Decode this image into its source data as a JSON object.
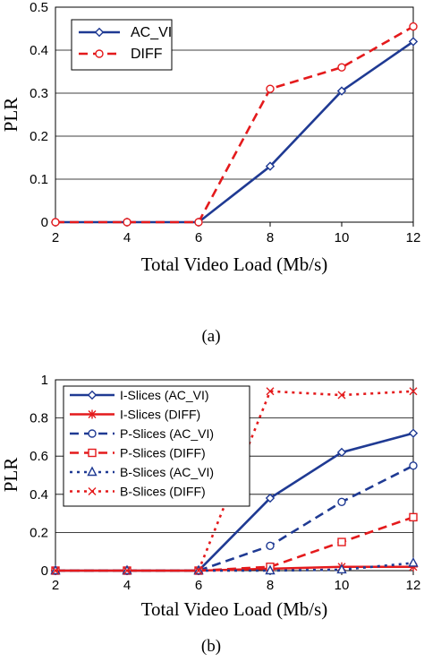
{
  "chart_data": [
    {
      "type": "line",
      "x": [
        2,
        4,
        6,
        8,
        10,
        12
      ],
      "xlabel": "Total Video Load (Mb/s)",
      "ylabel": "PLR",
      "xlim": [
        2,
        12
      ],
      "ylim": [
        0,
        0.5
      ],
      "yticks": [
        "0",
        "0.1",
        "0.2",
        "0.3",
        "0.4",
        "0.5"
      ],
      "xticks": [
        "2",
        "4",
        "6",
        "8",
        "10",
        "12"
      ],
      "grid": "horizontal",
      "legend": "top-left",
      "caption": "(a)",
      "series": [
        {
          "name": "AC_VI",
          "values": [
            0,
            0,
            0,
            0.13,
            0.305,
            0.42
          ],
          "color": "#1f3a93",
          "dash": "solid",
          "marker": "diamond"
        },
        {
          "name": "DIFF",
          "values": [
            0,
            0,
            0,
            0.31,
            0.36,
            0.455
          ],
          "color": "#e41a1c",
          "dash": "dashed",
          "marker": "circle"
        }
      ]
    },
    {
      "type": "line",
      "x": [
        2,
        4,
        6,
        8,
        10,
        12
      ],
      "xlabel": "Total Video Load (Mb/s)",
      "ylabel": "PLR",
      "xlim": [
        2,
        12
      ],
      "ylim": [
        0,
        1
      ],
      "yticks": [
        "0",
        "0.2",
        "0.4",
        "0.6",
        "0.8",
        "1"
      ],
      "xticks": [
        "2",
        "4",
        "6",
        "8",
        "10",
        "12"
      ],
      "grid": "horizontal",
      "legend": "top-left",
      "caption": "(b)",
      "series": [
        {
          "name": "I-Slices (AC_VI)",
          "values": [
            0,
            0,
            0,
            0.38,
            0.62,
            0.72
          ],
          "color": "#1f3a93",
          "dash": "solid",
          "marker": "diamond"
        },
        {
          "name": "I-Slices (DIFF)",
          "values": [
            0,
            0,
            0,
            0.01,
            0.02,
            0.02
          ],
          "color": "#e41a1c",
          "dash": "solid",
          "marker": "star"
        },
        {
          "name": "P-Slices (AC_VI)",
          "values": [
            0,
            0,
            0,
            0.13,
            0.36,
            0.55
          ],
          "color": "#1f3a93",
          "dash": "dashed",
          "marker": "circle"
        },
        {
          "name": "P-Slices (DIFF)",
          "values": [
            0,
            0,
            0,
            0.02,
            0.15,
            0.28
          ],
          "color": "#e41a1c",
          "dash": "dashed",
          "marker": "square"
        },
        {
          "name": "B-Slices (AC_VI)",
          "values": [
            0,
            0,
            0,
            0,
            0.005,
            0.04
          ],
          "color": "#1f3a93",
          "dash": "dotted",
          "marker": "triangle"
        },
        {
          "name": "B-Slices (DIFF)",
          "values": [
            0,
            0,
            0,
            0.94,
            0.92,
            0.94
          ],
          "color": "#e41a1c",
          "dash": "dotted",
          "marker": "x"
        }
      ]
    }
  ]
}
